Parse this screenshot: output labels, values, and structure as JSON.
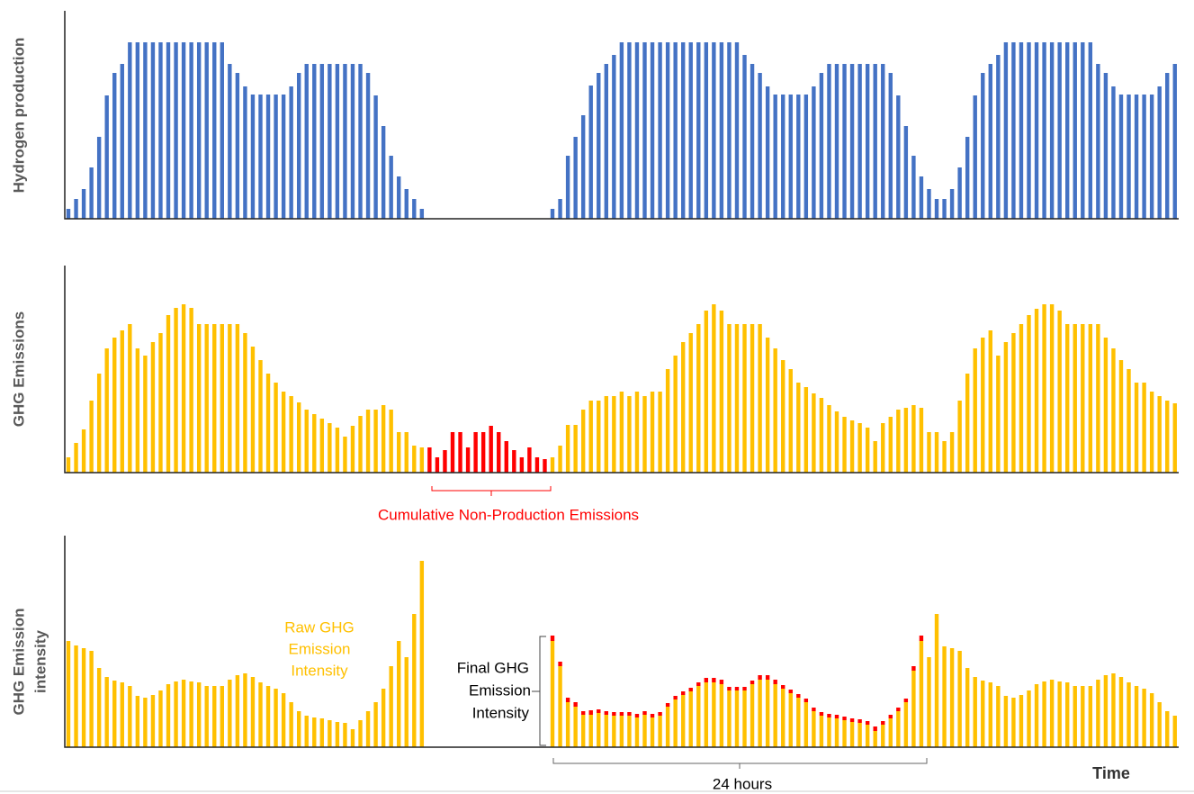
{
  "chart_data": [
    {
      "type": "bar",
      "ylabel": "Hydrogen production",
      "ylim": [
        0,
        231
      ],
      "series": [
        {
          "color": "#4472c4",
          "values": [
            11,
            22,
            33,
            57,
            91,
            137,
            162,
            172,
            196,
            196,
            196,
            196,
            196,
            196,
            196,
            196,
            196,
            196,
            196,
            196,
            196,
            172,
            162,
            147,
            138,
            138,
            138,
            138,
            138,
            147,
            162,
            172,
            172,
            172,
            172,
            172,
            172,
            172,
            172,
            162,
            137,
            103,
            70,
            47,
            33,
            22,
            11,
            null,
            null,
            null,
            null,
            null,
            null,
            null,
            null,
            null,
            null,
            null,
            null,
            null,
            null,
            null,
            null,
            11,
            22,
            70,
            91,
            115,
            148,
            162,
            172,
            182,
            196,
            196,
            196,
            196,
            196,
            196,
            196,
            196,
            196,
            196,
            196,
            196,
            196,
            196,
            196,
            196,
            182,
            172,
            162,
            147,
            138,
            138,
            138,
            138,
            138,
            147,
            162,
            172,
            172,
            172,
            172,
            172,
            172,
            172,
            172,
            162,
            137,
            103,
            70,
            47,
            33,
            22,
            22,
            33,
            57,
            91,
            137,
            162,
            172,
            182,
            196,
            196,
            196,
            196,
            196,
            196,
            196,
            196,
            196,
            196,
            196,
            196,
            172,
            162,
            147,
            138,
            138,
            138,
            138,
            138,
            147,
            162,
            172
          ]
        }
      ]
    },
    {
      "type": "bar",
      "ylabel": "GHG Emissions",
      "ylim": [
        0,
        230
      ],
      "annotation": "Cumulative Non-Production Emissions",
      "series": [
        {
          "color": "#ffc000",
          "values": [
            17,
            33,
            48,
            80,
            110,
            138,
            150,
            158,
            165,
            138,
            130,
            145,
            155,
            175,
            183,
            187,
            183,
            165,
            165,
            165,
            165,
            165,
            165,
            155,
            140,
            125,
            110,
            100,
            90,
            85,
            78,
            70,
            65,
            60,
            55,
            50,
            40,
            52,
            63,
            70,
            70,
            75,
            70,
            45,
            45,
            30,
            28,
            null,
            null,
            null,
            null,
            null,
            null,
            null,
            null,
            null,
            null,
            null,
            null,
            null,
            null,
            null,
            null,
            17,
            30,
            53,
            53,
            70,
            80,
            80,
            85,
            85,
            90,
            85,
            90,
            85,
            90,
            90,
            115,
            130,
            145,
            155,
            165,
            180,
            187,
            180,
            165,
            165,
            165,
            165,
            165,
            150,
            138,
            125,
            115,
            100,
            95,
            88,
            83,
            75,
            68,
            62,
            58,
            55,
            50,
            35,
            55,
            62,
            70,
            72,
            75,
            72,
            45,
            45,
            35,
            45,
            80,
            110,
            138,
            150,
            158,
            130,
            145,
            155,
            165,
            175,
            182,
            187,
            187,
            180,
            165,
            165,
            165,
            165,
            165,
            150,
            138,
            125,
            115,
            100,
            100,
            90,
            85,
            80,
            77
          ]
        },
        {
          "color": "#ff0000",
          "values": [
            null,
            null,
            null,
            null,
            null,
            null,
            null,
            null,
            null,
            null,
            null,
            null,
            null,
            null,
            null,
            null,
            null,
            null,
            null,
            null,
            null,
            null,
            null,
            null,
            null,
            null,
            null,
            null,
            null,
            null,
            null,
            null,
            null,
            null,
            null,
            null,
            null,
            null,
            null,
            null,
            null,
            null,
            null,
            null,
            null,
            null,
            null,
            28,
            17,
            25,
            45,
            45,
            28,
            45,
            45,
            52,
            45,
            35,
            25,
            17,
            28,
            17,
            15,
            null,
            null,
            null,
            null,
            null,
            null,
            null,
            null,
            null,
            null,
            null,
            null,
            null,
            null,
            null,
            null,
            null,
            null,
            null,
            null,
            null,
            null,
            null,
            null,
            null,
            null,
            null,
            null,
            null,
            null,
            null,
            null,
            null,
            null,
            null,
            null,
            null,
            null,
            null,
            null,
            null,
            null,
            null,
            null,
            null,
            null,
            null,
            null,
            null,
            null,
            null,
            null,
            null,
            null,
            null,
            null,
            null,
            null,
            null,
            null,
            null,
            null,
            null,
            null,
            null,
            null
          ]
        }
      ]
    },
    {
      "type": "bar",
      "stacked": true,
      "ylabel": [
        "GHG Emission",
        "intensity"
      ],
      "ylim": [
        0,
        235
      ],
      "xlabel": "Time",
      "annotations": {
        "raw": [
          "Raw GHG",
          "Emission",
          "Intensity"
        ],
        "final": [
          "Final GHG",
          "Emission",
          "Intensity"
        ],
        "span": "24 hours"
      },
      "series": [
        {
          "color": "#ffc000",
          "values": [
            118,
            113,
            110,
            107,
            88,
            78,
            74,
            72,
            68,
            57,
            55,
            58,
            63,
            70,
            73,
            75,
            73,
            72,
            68,
            68,
            68,
            75,
            80,
            82,
            78,
            72,
            68,
            65,
            60,
            50,
            40,
            35,
            33,
            32,
            30,
            28,
            27,
            20,
            30,
            40,
            50,
            65,
            90,
            118,
            100,
            148,
            207,
            null,
            null,
            null,
            null,
            null,
            null,
            null,
            null,
            null,
            null,
            null,
            null,
            null,
            null,
            null,
            null,
            118,
            90,
            50,
            45,
            36,
            36,
            38,
            36,
            35,
            35,
            35,
            33,
            36,
            33,
            35,
            45,
            53,
            58,
            62,
            68,
            72,
            72,
            70,
            63,
            63,
            63,
            70,
            75,
            75,
            70,
            65,
            60,
            55,
            50,
            40,
            35,
            33,
            32,
            30,
            28,
            27,
            25,
            18,
            25,
            32,
            40,
            50,
            85,
            118,
            100,
            148,
            112,
            110,
            107,
            88,
            78,
            74,
            72,
            68,
            57,
            55,
            58,
            63,
            70,
            73,
            75,
            73,
            72,
            68,
            68,
            68,
            75,
            80,
            82,
            78,
            72,
            68,
            65,
            60,
            50,
            40,
            35
          ]
        },
        {
          "color": "#ff0000",
          "values": [
            null,
            null,
            null,
            null,
            null,
            null,
            null,
            null,
            null,
            null,
            null,
            null,
            null,
            null,
            null,
            null,
            null,
            null,
            null,
            null,
            null,
            null,
            null,
            null,
            null,
            null,
            null,
            null,
            null,
            null,
            null,
            null,
            null,
            null,
            null,
            null,
            null,
            null,
            null,
            null,
            null,
            null,
            null,
            null,
            null,
            null,
            null,
            null,
            null,
            null,
            null,
            null,
            null,
            null,
            null,
            null,
            null,
            null,
            null,
            null,
            null,
            null,
            null,
            6,
            5,
            5,
            5,
            4,
            5,
            4,
            4,
            4,
            4,
            4,
            4,
            4,
            4,
            4,
            4,
            4,
            4,
            4,
            4,
            5,
            5,
            5,
            4,
            4,
            4,
            4,
            5,
            5,
            5,
            4,
            4,
            4,
            4,
            4,
            4,
            4,
            4,
            4,
            4,
            4,
            4,
            5,
            4,
            4,
            4,
            4,
            5,
            6,
            null,
            null,
            null,
            null,
            null,
            null,
            null,
            null,
            null,
            null,
            null,
            null,
            null,
            null,
            null,
            null,
            null,
            null,
            null,
            null,
            null,
            null,
            null,
            null,
            null,
            null,
            null,
            null,
            null,
            null,
            null,
            null,
            null
          ]
        }
      ]
    }
  ]
}
